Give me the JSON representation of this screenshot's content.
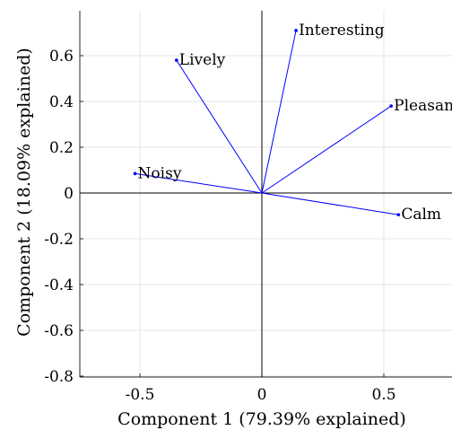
{
  "chart_data": {
    "type": "scatter",
    "subtype": "biplot",
    "xlabel": "Component 1 (79.39% explained)",
    "ylabel": "Component 2 (18.09% explained)",
    "xlim": [
      -0.8,
      0.8
    ],
    "ylim": [
      -0.8,
      0.8
    ],
    "xticks": [
      -0.5,
      0,
      0.5
    ],
    "xtick_labels": [
      "-0.5",
      "0",
      "0.5"
    ],
    "yticks": [
      -0.8,
      -0.6,
      -0.4,
      -0.2,
      0,
      0.2,
      0.4,
      0.6
    ],
    "ytick_labels": [
      "-0.8",
      "-0.6",
      "-0.4",
      "-0.2",
      "0",
      "0.2",
      "0.4",
      "0.6"
    ],
    "grid": true,
    "vector_color": "#0000ff",
    "vectors": [
      {
        "label": "Interesting",
        "x": 0.14,
        "y": 0.71
      },
      {
        "label": "Lively",
        "x": -0.35,
        "y": 0.58
      },
      {
        "label": "Pleasant",
        "x": 0.53,
        "y": 0.38
      },
      {
        "label": "Noisy",
        "x": -0.52,
        "y": 0.085
      },
      {
        "label": "Calm",
        "x": 0.56,
        "y": -0.095
      }
    ]
  }
}
